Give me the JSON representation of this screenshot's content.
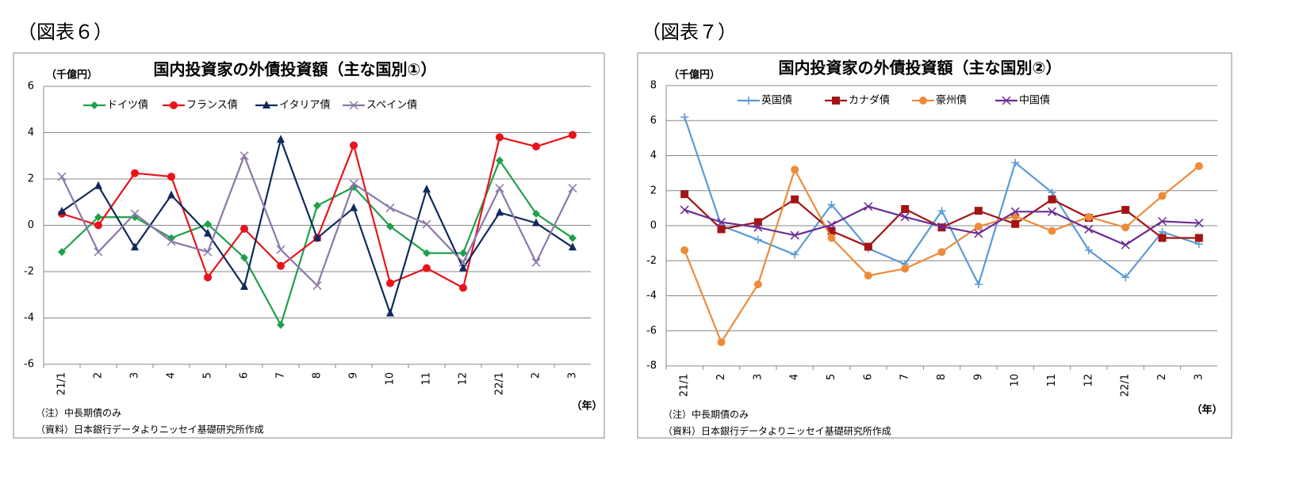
{
  "chart_data": [
    {
      "type": "line",
      "figure_label": "（図表６）",
      "title": "国内投資家の外債投資額（主な国別①）",
      "ylabel": "（千億円）",
      "xlabel": "（年）",
      "notes": [
        "（注）中長期債のみ",
        "（資料）日本銀行データよりニッセイ基礎研究所作成"
      ],
      "categories": [
        "21/1",
        "2",
        "3",
        "4",
        "5",
        "6",
        "7",
        "8",
        "9",
        "10",
        "11",
        "12",
        "22/1",
        "2",
        "3"
      ],
      "ylim": [
        -6,
        6
      ],
      "yticks": [
        -6,
        -4,
        -2,
        0,
        2,
        4,
        6
      ],
      "grid": true,
      "series": [
        {
          "name": "ドイツ債",
          "color": "#1fa04a",
          "marker": "diamond",
          "values": [
            -1.15,
            0.35,
            0.35,
            -0.55,
            0.05,
            -1.4,
            -4.3,
            0.85,
            1.65,
            -0.05,
            -1.2,
            -1.2,
            2.8,
            0.5,
            -0.55
          ]
        },
        {
          "name": "フランス債",
          "color": "#e8141b",
          "marker": "circle",
          "values": [
            0.5,
            0,
            2.25,
            2.1,
            -2.25,
            -0.15,
            -1.75,
            -0.55,
            3.45,
            -2.5,
            -1.85,
            -2.7,
            3.8,
            3.4,
            3.9
          ]
        },
        {
          "name": "イタリア債",
          "color": "#112a5c",
          "marker": "triangle",
          "values": [
            0.6,
            1.7,
            -0.95,
            1.3,
            -0.35,
            -2.65,
            3.7,
            -0.55,
            0.75,
            -3.8,
            1.55,
            -1.85,
            0.55,
            0.1,
            -0.95
          ]
        },
        {
          "name": "スペイン債",
          "color": "#8a78a8",
          "marker": "x",
          "values": [
            2.1,
            -1.15,
            0.5,
            -0.7,
            -1.15,
            3.0,
            -1.05,
            -2.6,
            1.8,
            0.75,
            0.05,
            -1.6,
            1.6,
            -1.6,
            1.6
          ]
        }
      ]
    },
    {
      "type": "line",
      "figure_label": "（図表７）",
      "title": "国内投資家の外債投資額（主な国別②）",
      "ylabel": "（千億円）",
      "xlabel": "（年）",
      "notes": [
        "（注）中長期債のみ",
        "（資料）日本銀行データよりニッセイ基礎研究所作成"
      ],
      "categories": [
        "21/1",
        "2",
        "3",
        "4",
        "5",
        "6",
        "7",
        "8",
        "9",
        "10",
        "11",
        "12",
        "22/1",
        "2",
        "3"
      ],
      "ylim": [
        -8,
        8
      ],
      "yticks": [
        -8,
        -6,
        -4,
        -2,
        0,
        2,
        4,
        6,
        8
      ],
      "grid": true,
      "series": [
        {
          "name": "英国債",
          "color": "#5b9bd5",
          "marker": "plus",
          "values": [
            6.2,
            0.0,
            -0.8,
            -1.65,
            1.2,
            -1.3,
            -2.2,
            0.85,
            -3.35,
            3.6,
            1.9,
            -1.4,
            -2.95,
            -0.35,
            -1.05
          ]
        },
        {
          "name": "カナダ債",
          "color": "#a31515",
          "marker": "square",
          "values": [
            1.8,
            -0.2,
            0.2,
            1.5,
            -0.3,
            -1.2,
            0.95,
            -0.1,
            0.85,
            0.1,
            1.5,
            0.45,
            0.9,
            -0.7,
            -0.7
          ]
        },
        {
          "name": "豪州債",
          "color": "#ed8b3b",
          "marker": "circle",
          "values": [
            -1.4,
            -6.65,
            -3.35,
            3.2,
            -0.7,
            -2.85,
            -2.45,
            -1.5,
            -0.05,
            0.55,
            -0.3,
            0.5,
            -0.1,
            1.7,
            3.4
          ]
        },
        {
          "name": "中国債",
          "color": "#6a2c91",
          "marker": "x",
          "values": [
            0.9,
            0.2,
            -0.1,
            -0.55,
            0.05,
            1.1,
            0.5,
            -0.05,
            -0.45,
            0.8,
            0.8,
            -0.2,
            -1.1,
            0.25,
            0.15
          ]
        }
      ]
    }
  ]
}
